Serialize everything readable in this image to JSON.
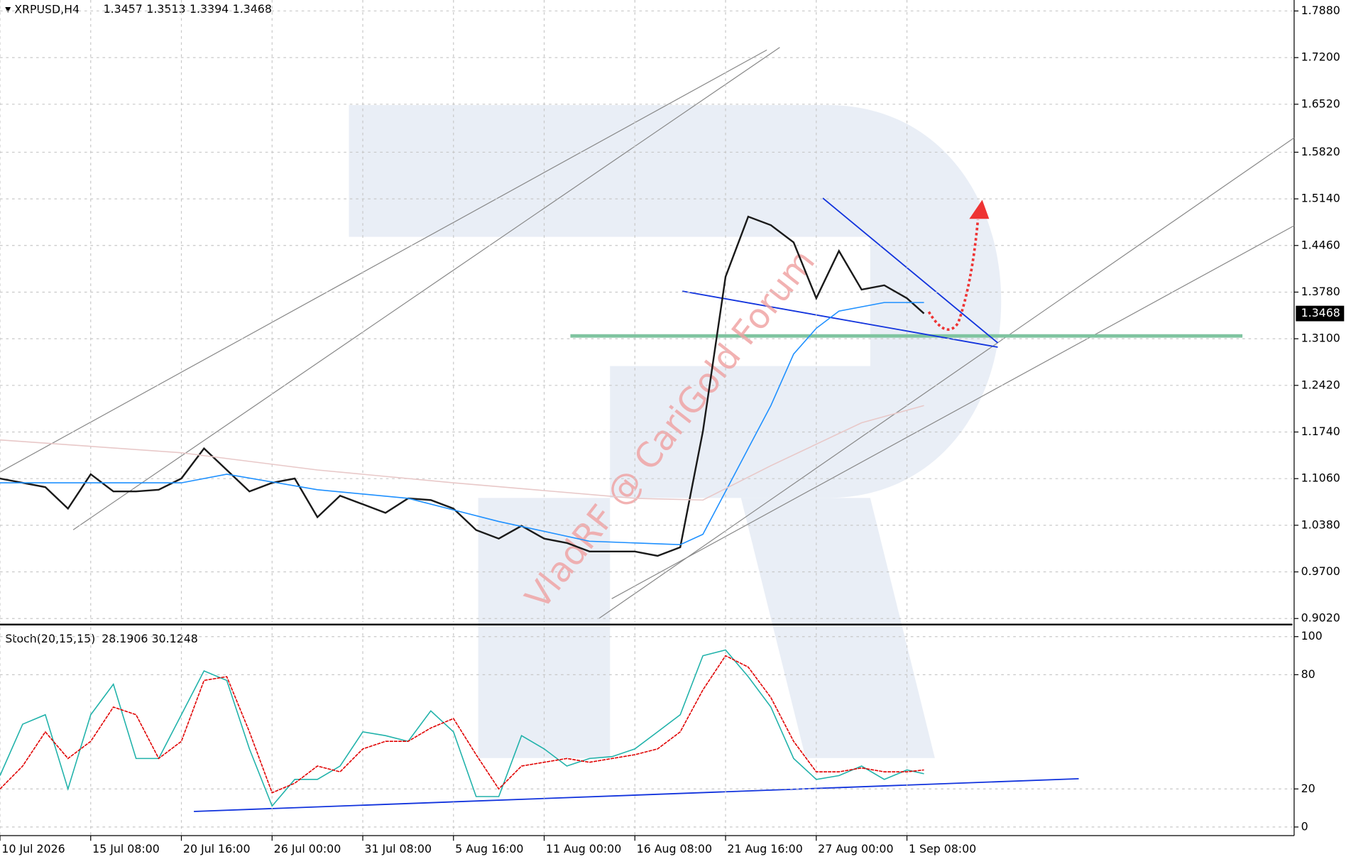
{
  "chart_data": [
    {
      "type": "line",
      "title": "XRPUSD,H4",
      "ohlc": [
        1.3457,
        1.3513,
        1.3394,
        1.3468
      ],
      "watermark": "VladRF @ CariGold Forum",
      "x": [
        0,
        8,
        16,
        24,
        32,
        40,
        48,
        56,
        64,
        72,
        80,
        88,
        96,
        104,
        112,
        120,
        128,
        136,
        144,
        152,
        160,
        168,
        176,
        184,
        192,
        200,
        208,
        216,
        224,
        232,
        240,
        248,
        256,
        264,
        272,
        280,
        288,
        296,
        304,
        312,
        320,
        326
      ],
      "xlim": [
        0,
        456
      ],
      "ylim": [
        0.897,
        1.804
      ],
      "yticks": [
        {
          "value": 0.902,
          "label": "0.9020"
        },
        {
          "value": 0.97,
          "label": "0.9700"
        },
        {
          "value": 1.038,
          "label": "1.0380"
        },
        {
          "value": 1.106,
          "label": "1.1060"
        },
        {
          "value": 1.174,
          "label": "1.1740"
        },
        {
          "value": 1.242,
          "label": "1.2420"
        },
        {
          "value": 1.31,
          "label": "1.3100"
        },
        {
          "value": 1.378,
          "label": "1.3780"
        },
        {
          "value": 1.446,
          "label": "1.4460"
        },
        {
          "value": 1.514,
          "label": "1.5140"
        },
        {
          "value": 1.582,
          "label": "1.5820"
        },
        {
          "value": 1.652,
          "label": "1.6520"
        },
        {
          "value": 1.72,
          "label": "1.7200"
        },
        {
          "value": 1.788,
          "label": "1.7880"
        }
      ],
      "grid": true,
      "series": [
        {
          "color": "#1a1a1a",
          "values": [
            1.1061,
            1.0999,
            1.0936,
            1.0623,
            1.1124,
            1.0873,
            1.0873,
            1.0898,
            1.1061,
            1.15,
            1.1186,
            1.0873,
            1.0999,
            1.1061,
            1.0498,
            1.0811,
            1.0686,
            1.056,
            1.0773,
            1.0748,
            1.0623,
            1.031,
            1.0185,
            1.0372,
            1.0185,
            1.0122,
            0.9997,
            0.9997,
            0.9997,
            0.9934,
            1.0059,
            1.175,
            1.4004,
            1.4881,
            1.4756,
            1.4505,
            1.3691,
            1.438,
            1.3816,
            1.3879,
            1.3691,
            1.3468
          ]
        },
        {
          "color": "#1e90ff",
          "x": [
            0,
            32,
            64,
            80,
            112,
            144,
            176,
            208,
            240,
            248,
            256,
            264,
            272,
            280,
            288,
            296,
            312,
            326
          ],
          "values": [
            1.0999,
            1.0999,
            1.0999,
            1.1124,
            1.0898,
            1.0773,
            1.0435,
            1.0147,
            1.0097,
            1.0247,
            1.0873,
            1.15,
            1.2126,
            1.2877,
            1.3253,
            1.3503,
            1.3628,
            1.3628
          ]
        },
        {
          "color": "#e8c8c8",
          "x": [
            0,
            64,
            112,
            160,
            224,
            248,
            272,
            304,
            326
          ],
          "values": [
            1.1625,
            1.1437,
            1.1186,
            1.0999,
            1.0773,
            1.0748,
            1.1249,
            1.1875,
            1.2126
          ]
        }
      ]
    },
    {
      "type": "line",
      "title": "Stoch(20,15,15)",
      "current": [
        28.1906,
        30.1248
      ],
      "x": [
        0,
        8,
        16,
        24,
        32,
        40,
        48,
        56,
        64,
        72,
        80,
        88,
        96,
        104,
        112,
        120,
        128,
        136,
        144,
        152,
        160,
        168,
        176,
        184,
        192,
        200,
        208,
        216,
        224,
        232,
        240,
        248,
        256,
        264,
        272,
        280,
        288,
        296,
        304,
        312,
        320,
        326
      ],
      "xlim": [
        0,
        456
      ],
      "ylim": [
        -4.5,
        105
      ],
      "yticks": [
        0,
        20,
        80,
        100
      ],
      "xticks": [
        {
          "value": 0,
          "label": "10 Jul 2026"
        },
        {
          "value": 32,
          "label": "15 Jul 08:00"
        },
        {
          "value": 64,
          "label": "20 Jul 16:00"
        },
        {
          "value": 96,
          "label": "26 Jul 00:00"
        },
        {
          "value": 128,
          "label": "31 Jul 08:00"
        },
        {
          "value": 160,
          "label": "5 Aug 16:00"
        },
        {
          "value": 192,
          "label": "11 Aug 00:00"
        },
        {
          "value": 224,
          "label": "16 Aug 08:00"
        },
        {
          "value": 256,
          "label": "21 Aug 16:00"
        },
        {
          "value": 288,
          "label": "27 Aug 00:00"
        },
        {
          "value": 320,
          "label": "1 Sep 08:00"
        }
      ],
      "series": [
        {
          "color": "#20b2aa",
          "values": [
            27,
            54,
            59,
            20,
            59,
            75,
            36,
            36,
            59,
            82,
            77,
            41,
            11,
            25,
            25,
            32,
            50,
            48,
            45,
            61,
            50,
            16,
            16,
            48,
            41,
            32,
            36,
            37,
            41,
            50,
            59,
            90,
            93,
            79,
            63,
            36,
            25,
            27,
            32,
            25,
            30,
            28
          ]
        },
        {
          "color": "#e00000",
          "dashed": true,
          "values": [
            20,
            32,
            50,
            36,
            45,
            63,
            59,
            36,
            45,
            77,
            79,
            50,
            18,
            23,
            32,
            29,
            41,
            45,
            45,
            52,
            57,
            38,
            20,
            32,
            34,
            36,
            34,
            36,
            38,
            41,
            50,
            72,
            90,
            84,
            68,
            45,
            29,
            29,
            31,
            29,
            29,
            30
          ]
        }
      ]
    }
  ]
}
